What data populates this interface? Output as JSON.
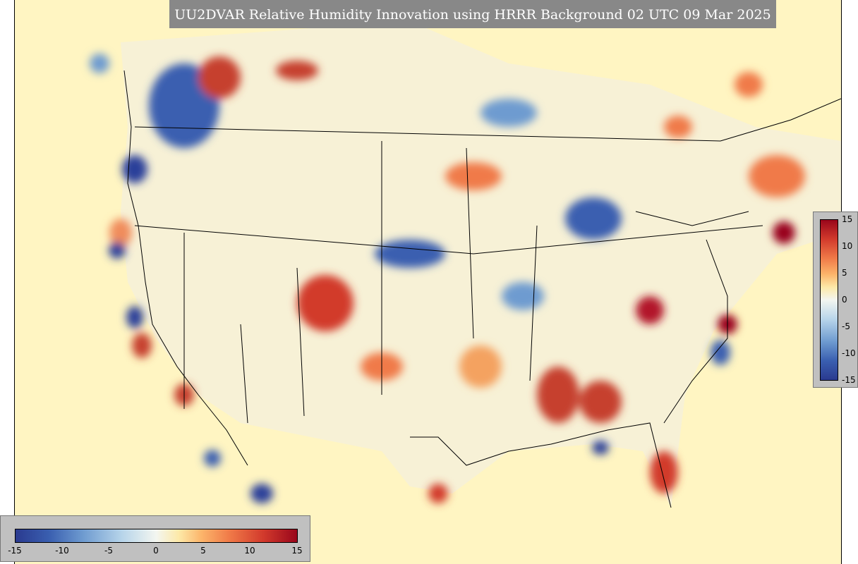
{
  "title": "UU2DVAR Relative Humidity Innovation using HRRR Background 02 UTC 09 Mar 2025",
  "colorbar_horizontal": {
    "ticks": [
      "-15",
      "-10",
      "-5",
      "0",
      "5",
      "10",
      "15"
    ]
  },
  "colorbar_vertical": {
    "ticks": [
      "15",
      "10",
      "5",
      "0",
      "-5",
      "-10",
      "-15"
    ]
  },
  "colors": {
    "background": "#fff5c2",
    "positive": "#b2182b",
    "negative": "#2c3f9a",
    "panel": "#c0c0c0",
    "title_bg": "#888888"
  }
}
